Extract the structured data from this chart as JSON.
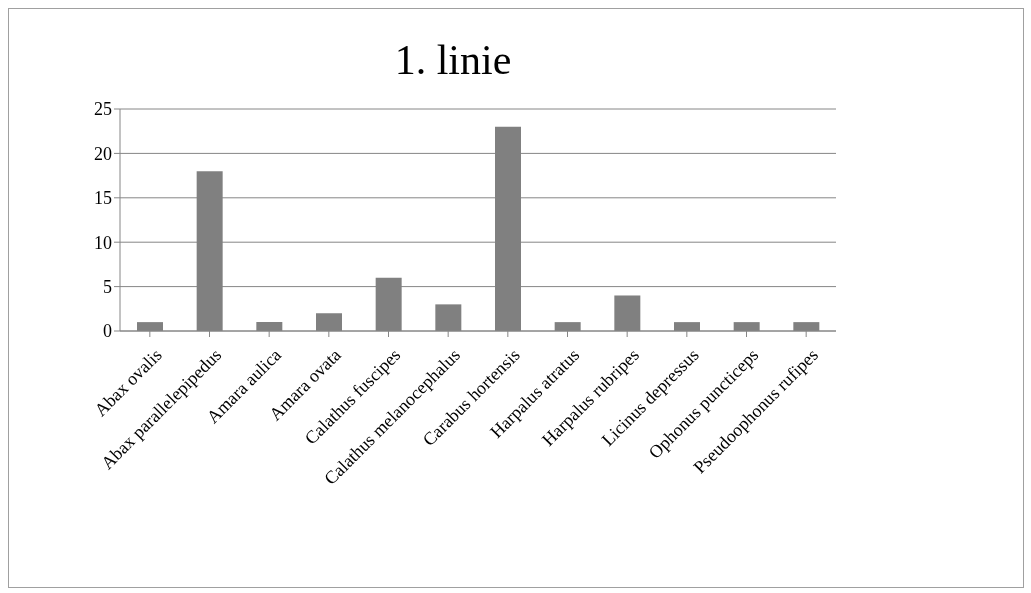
{
  "chart_data": {
    "type": "bar",
    "title": "1. linie",
    "categories": [
      "Abax ovalis",
      "Abax parallelepipedus",
      "Amara aulica",
      "Amara ovata",
      "Calathus fuscipes",
      "Calathus melanocephalus",
      "Carabus hortensis",
      "Harpalus atratus",
      "Harpalus rubripes",
      "Licinus depressus",
      "Ophonus puncticeps",
      "Pseudoophonus rufipes"
    ],
    "values": [
      1,
      18,
      1,
      2,
      6,
      3,
      23,
      1,
      4,
      1,
      1,
      1
    ],
    "color": "#808080",
    "ylim": [
      0,
      25
    ],
    "yticks": [
      0,
      5,
      10,
      15,
      20,
      25
    ],
    "grid": "y"
  }
}
